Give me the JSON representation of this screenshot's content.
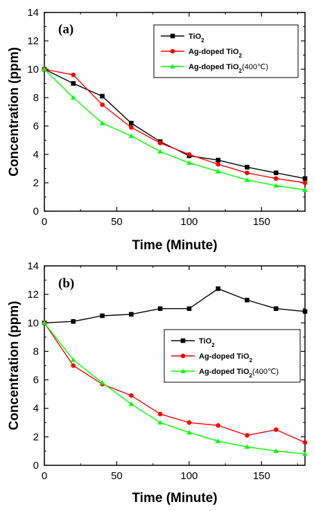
{
  "colors": {
    "tio2": "#000000",
    "ag": "#ff0000",
    "ag400": "#00ff00"
  },
  "chart_data": [
    {
      "type": "line",
      "panel_label": "(a)",
      "xlabel": "Time (Minute)",
      "ylabel": "Concentration (ppm)",
      "xlim": [
        0,
        180
      ],
      "ylim": [
        0,
        14
      ],
      "x_ticks": [
        0,
        50,
        100,
        150
      ],
      "y_ticks": [
        0,
        2,
        4,
        6,
        8,
        10,
        12,
        14
      ],
      "grid": false,
      "legend": {
        "position": "top-right"
      },
      "series": [
        {
          "name_main": "TiO",
          "name_sub": "2",
          "name_suffix": "",
          "marker": "square",
          "color_key": "tio2",
          "x": [
            0,
            20,
            40,
            60,
            80,
            100,
            120,
            140,
            160,
            180
          ],
          "y": [
            10.0,
            9.0,
            8.1,
            6.2,
            4.9,
            3.9,
            3.6,
            3.1,
            2.7,
            2.3
          ]
        },
        {
          "name_main": "Ag-doped TiO",
          "name_sub": "2",
          "name_suffix": "",
          "marker": "circle",
          "color_key": "ag",
          "x": [
            0,
            20,
            40,
            60,
            80,
            100,
            120,
            140,
            160,
            180
          ],
          "y": [
            10.0,
            9.6,
            7.5,
            5.9,
            4.8,
            4.0,
            3.3,
            2.7,
            2.3,
            2.0
          ]
        },
        {
          "name_main": "Ag-doped TiO",
          "name_sub": "2",
          "name_suffix": "(400℃)",
          "marker": "triangle",
          "color_key": "ag400",
          "x": [
            0,
            20,
            40,
            60,
            80,
            100,
            120,
            140,
            160,
            180
          ],
          "y": [
            10.0,
            8.0,
            6.2,
            5.3,
            4.2,
            3.4,
            2.8,
            2.2,
            1.8,
            1.5
          ]
        }
      ]
    },
    {
      "type": "line",
      "panel_label": "(b)",
      "xlabel": "Time (Minute)",
      "ylabel": "Concentration (ppm)",
      "xlim": [
        0,
        180
      ],
      "ylim": [
        0,
        14
      ],
      "x_ticks": [
        0,
        50,
        100,
        150
      ],
      "y_ticks": [
        0,
        2,
        4,
        6,
        8,
        10,
        12,
        14
      ],
      "grid": false,
      "legend": {
        "position": "center-right"
      },
      "series": [
        {
          "name_main": "TiO",
          "name_sub": "2",
          "name_suffix": "",
          "marker": "square",
          "color_key": "tio2",
          "x": [
            0,
            20,
            40,
            60,
            80,
            100,
            120,
            140,
            160,
            180
          ],
          "y": [
            10.0,
            10.1,
            10.5,
            10.6,
            11.0,
            11.0,
            12.4,
            11.6,
            11.0,
            10.8
          ]
        },
        {
          "name_main": "Ag-doped TiO",
          "name_sub": "2",
          "name_suffix": "",
          "marker": "circle",
          "color_key": "ag",
          "x": [
            0,
            20,
            40,
            60,
            80,
            100,
            120,
            140,
            160,
            180
          ],
          "y": [
            10.0,
            7.0,
            5.7,
            4.9,
            3.6,
            3.0,
            2.8,
            2.1,
            2.5,
            1.6
          ]
        },
        {
          "name_main": "Ag-doped TiO",
          "name_sub": "2",
          "name_suffix": "(400℃)",
          "marker": "triangle",
          "color_key": "ag400",
          "x": [
            0,
            20,
            40,
            60,
            80,
            100,
            120,
            140,
            160,
            180
          ],
          "y": [
            10.0,
            7.4,
            5.8,
            4.3,
            3.0,
            2.3,
            1.7,
            1.3,
            1.0,
            0.8
          ]
        }
      ]
    }
  ]
}
